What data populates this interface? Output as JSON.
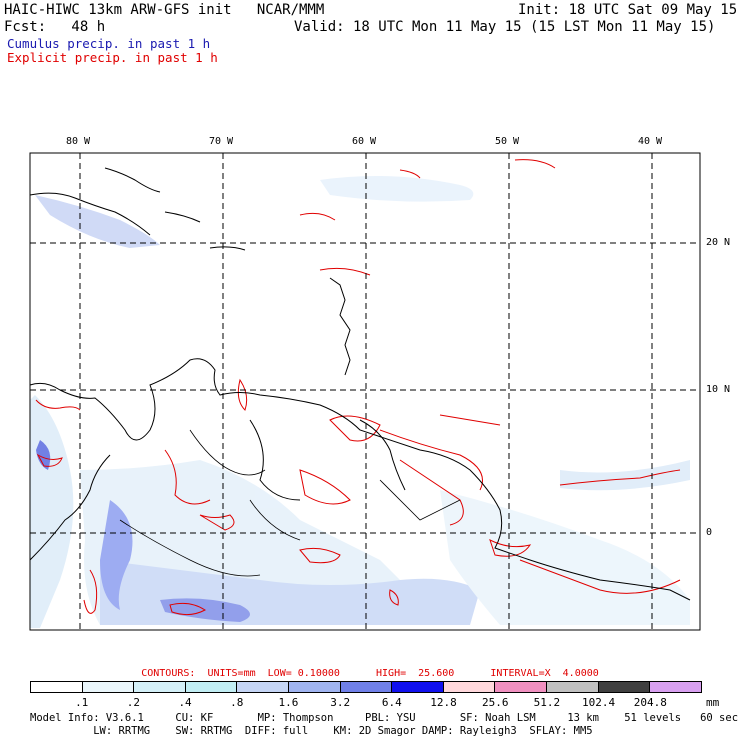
{
  "header": {
    "title_left": "HAIC-HIWC 13km ARW-GFS init   NCAR/MMM",
    "init": "Init: 18 UTC Sat 09 May 15",
    "forecast_label": "Fcst:   48 h",
    "valid": "Valid: 18 UTC Mon 11 May 15 (15 LST Mon 11 May 15)",
    "field1": "Cumulus precip. in past 1 h",
    "field2": "Explicit precip. in past 1 h"
  },
  "colors": {
    "field1": "#0000cc",
    "field2": "#e00000",
    "gridline": "#000000"
  },
  "map": {
    "lon_ticks": [
      "80 W",
      "70 W",
      "60 W",
      "50 W",
      "40 W"
    ],
    "lat_ticks": [
      "20 N",
      "10 N",
      "0"
    ]
  },
  "contours": {
    "text": "CONTOURS:  UNITS=mm  LOW= 0.10000      HIGH=  25.600      INTERVAL=X  4.0000"
  },
  "colorbar": {
    "labels": [
      ".1",
      ".2",
      ".4",
      ".8",
      "1.6",
      "3.2",
      "6.4",
      "12.8",
      "25.6",
      "51.2",
      "102.4",
      "204.8"
    ],
    "unit": "mm",
    "colors": [
      "#ffffff",
      "#eaf6fb",
      "#d4f0f8",
      "#c2eef4",
      "#c5d5f5",
      "#a0b4f0",
      "#7080e8",
      "#1010ee",
      "#ffd8dc",
      "#f090c0",
      "#c0c0c0",
      "#404040",
      "#d8a0f0"
    ]
  },
  "model_info": {
    "line1": "Model Info: V3.6.1     CU: KF       MP: Thompson     PBL: YSU       SF: Noah LSM     13 km    51 levels   60 sec",
    "line2": "          LW: RRTMG    SW: RRTMG  DIFF: full    KM: 2D Smagor DAMP: Rayleigh3  SFLAY: MM5"
  }
}
